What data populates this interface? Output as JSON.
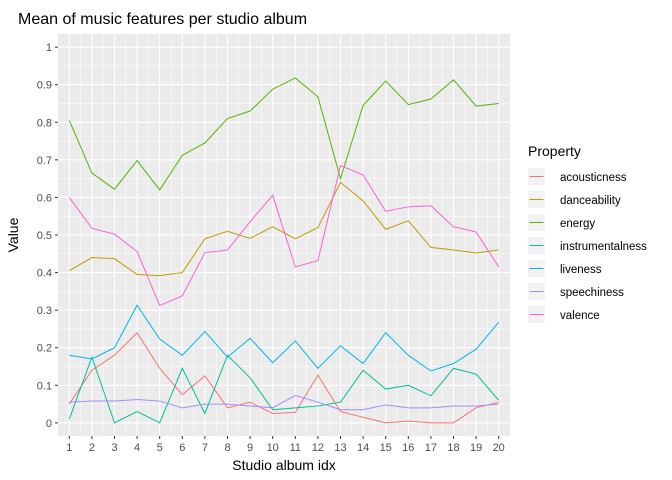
{
  "chart_data": {
    "type": "line",
    "title": "Mean of music features per studio album",
    "xlabel": "Studio album idx",
    "ylabel": "Value",
    "x": [
      1,
      2,
      3,
      4,
      5,
      6,
      7,
      8,
      9,
      10,
      11,
      12,
      13,
      14,
      15,
      16,
      17,
      18,
      19,
      20
    ],
    "xlim": [
      0.5,
      20.5
    ],
    "ylim": [
      -0.035,
      1.035
    ],
    "y_ticks": [
      0,
      0.1,
      0.2,
      0.3,
      0.4,
      0.5,
      0.6,
      0.7,
      0.8,
      0.9,
      1
    ],
    "y_tick_labels": [
      "0",
      "0.1",
      "0.2",
      "0.3",
      "0.4",
      "0.5",
      "0.6",
      "0.7",
      "0.8",
      "0.9",
      "1"
    ],
    "x_tick_labels": [
      "1",
      "2",
      "3",
      "4",
      "5",
      "6",
      "7",
      "8",
      "9",
      "10",
      "11",
      "12",
      "13",
      "14",
      "15",
      "16",
      "17",
      "18",
      "19",
      "20"
    ],
    "grid": true,
    "background_color": "#ebebeb",
    "legend": {
      "title": "Property",
      "placement": "right"
    },
    "series": [
      {
        "name": "acousticness",
        "color": "#F8766D",
        "values": [
          0.05,
          0.14,
          0.18,
          0.24,
          0.145,
          0.075,
          0.125,
          0.04,
          0.055,
          0.025,
          0.028,
          0.127,
          0.03,
          0.015,
          0.0,
          0.005,
          0.0,
          0.0,
          0.04,
          0.055
        ]
      },
      {
        "name": "danceability",
        "color": "#C49A00",
        "values": [
          0.405,
          0.44,
          0.437,
          0.395,
          0.392,
          0.4,
          0.49,
          0.51,
          0.491,
          0.522,
          0.49,
          0.52,
          0.64,
          0.591,
          0.515,
          0.538,
          0.467,
          0.46,
          0.452,
          0.46
        ]
      },
      {
        "name": "energy",
        "color": "#53B400",
        "values": [
          0.805,
          0.665,
          0.622,
          0.698,
          0.62,
          0.712,
          0.745,
          0.81,
          0.83,
          0.888,
          0.918,
          0.868,
          0.65,
          0.845,
          0.91,
          0.847,
          0.862,
          0.913,
          0.843,
          0.85
        ]
      },
      {
        "name": "instrumentalness",
        "color": "#00C094",
        "values": [
          0.01,
          0.175,
          0.0,
          0.03,
          0.0,
          0.145,
          0.025,
          0.18,
          0.12,
          0.035,
          0.04,
          0.045,
          0.055,
          0.14,
          0.09,
          0.1,
          0.072,
          0.145,
          0.13,
          0.06
        ]
      },
      {
        "name": "liveness",
        "color": "#00B6EB",
        "values": [
          0.18,
          0.17,
          0.2,
          0.313,
          0.223,
          0.18,
          0.243,
          0.175,
          0.225,
          0.16,
          0.218,
          0.145,
          0.205,
          0.158,
          0.24,
          0.18,
          0.138,
          0.158,
          0.196,
          0.268
        ]
      },
      {
        "name": "speechiness",
        "color": "#A58AFF",
        "values": [
          0.055,
          0.058,
          0.058,
          0.062,
          0.058,
          0.04,
          0.05,
          0.05,
          0.045,
          0.04,
          0.073,
          0.055,
          0.035,
          0.035,
          0.048,
          0.04,
          0.04,
          0.045,
          0.045,
          0.05
        ]
      },
      {
        "name": "valence",
        "color": "#FB61D7",
        "values": [
          0.6,
          0.518,
          0.502,
          0.456,
          0.312,
          0.338,
          0.453,
          0.46,
          0.535,
          0.606,
          0.415,
          0.432,
          0.685,
          0.66,
          0.563,
          0.575,
          0.578,
          0.522,
          0.508,
          0.415
        ]
      }
    ]
  }
}
